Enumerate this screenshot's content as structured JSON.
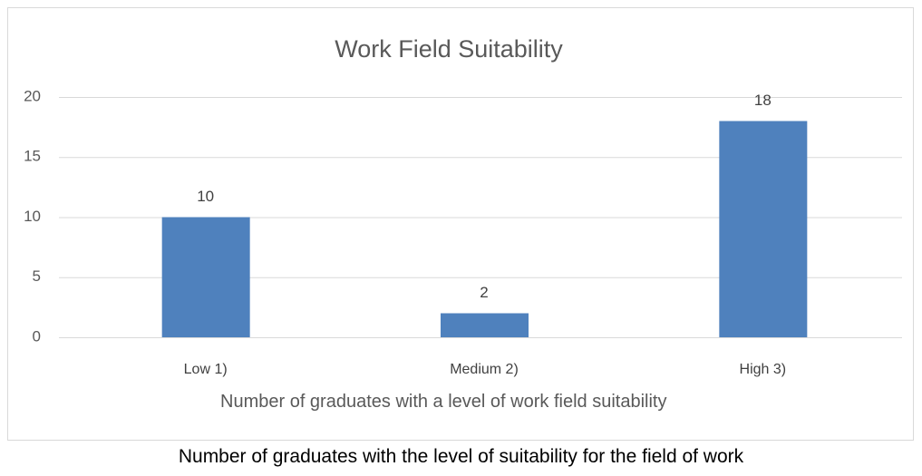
{
  "chart_data": {
    "type": "bar",
    "title": "Work Field Suitability",
    "categories": [
      "Low 1)",
      "Medium 2)",
      "High 3)"
    ],
    "values": [
      10,
      2,
      18
    ],
    "color": "#4f81bd",
    "ylim": [
      0,
      20
    ],
    "yticks": [
      0,
      5,
      10,
      15,
      20
    ],
    "grid": true,
    "x_label": "Number of graduates with a level of work field suitability",
    "caption": "Number of graduates with the level of suitability for the field of work"
  }
}
